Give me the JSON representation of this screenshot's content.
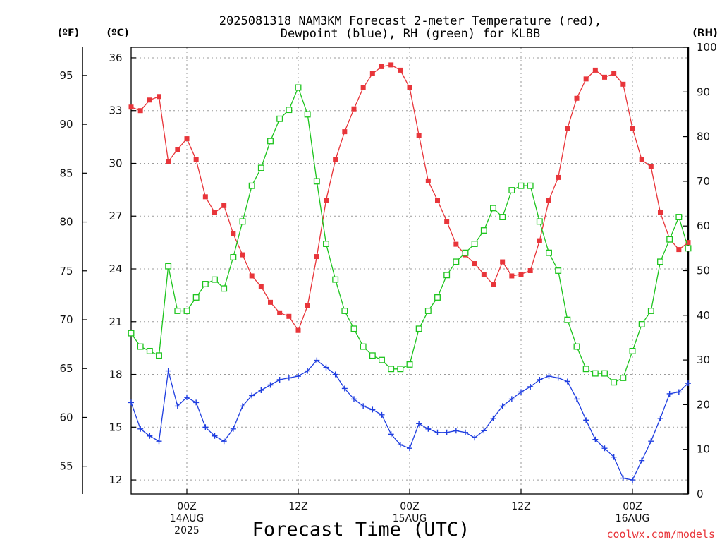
{
  "chart_data": {
    "type": "line",
    "title_lines": [
      "2025081318 NAM3KM Forecast 2-meter Temperature (red),",
      "Dewpoint (blue), RH (green) for KLBB"
    ],
    "units": {
      "fahrenheit": "(ºF)",
      "celsius": "(ºC)",
      "rh": "(RH)"
    },
    "xlabel": "Forecast Time (UTC)",
    "credit": "coolwx.com/models",
    "x_ticks": [
      {
        "t": 6,
        "lines": [
          "00Z",
          "14AUG",
          "2025"
        ]
      },
      {
        "t": 18,
        "lines": [
          "12Z"
        ]
      },
      {
        "t": 30,
        "lines": [
          "00Z",
          "15AUG"
        ]
      },
      {
        "t": 42,
        "lines": [
          "12Z"
        ]
      },
      {
        "t": 54,
        "lines": [
          "00Z",
          "16AUG"
        ]
      }
    ],
    "x_range_hours": [
      0,
      60
    ],
    "left_axis": {
      "unit": "C",
      "range": [
        11.2,
        36.6
      ],
      "ticks": [
        "12",
        "15",
        "18",
        "21",
        "24",
        "27",
        "30",
        "33",
        "36"
      ]
    },
    "far_left_axis": {
      "unit": "F",
      "range": [
        52.16,
        97.88
      ],
      "ticks": [
        "55",
        "60",
        "65",
        "70",
        "75",
        "80",
        "85",
        "90",
        "95"
      ]
    },
    "right_axis": {
      "unit": "RH %",
      "range": [
        0,
        100
      ],
      "ticks": [
        "0",
        "10",
        "20",
        "30",
        "40",
        "50",
        "60",
        "70",
        "80",
        "90",
        "100"
      ]
    },
    "grid": true,
    "series": [
      {
        "name": "Temperature (red)",
        "color": "#e8353a",
        "marker": "filled-square",
        "axis": "C",
        "x": [
          0,
          1,
          2,
          3,
          4,
          5,
          6,
          7,
          8,
          9,
          10,
          11,
          12,
          13,
          14,
          15,
          16,
          17,
          18,
          19,
          20,
          21,
          22,
          23,
          24,
          25,
          26,
          27,
          28,
          29,
          30,
          31,
          32,
          33,
          34,
          35,
          36,
          37,
          38,
          39,
          40,
          41,
          42,
          43,
          44,
          45,
          46,
          47,
          48,
          49,
          50,
          51,
          52,
          53,
          54,
          55,
          56,
          57,
          58,
          59,
          60
        ],
        "values": [
          33.2,
          33.0,
          33.6,
          33.8,
          30.1,
          30.8,
          31.4,
          30.2,
          28.1,
          27.2,
          27.6,
          26.0,
          24.8,
          23.6,
          23.0,
          22.1,
          21.5,
          21.3,
          20.5,
          21.9,
          24.7,
          27.9,
          30.2,
          31.8,
          33.1,
          34.3,
          35.1,
          35.5,
          35.6,
          35.3,
          34.3,
          31.6,
          29.0,
          27.9,
          26.7,
          25.4,
          24.8,
          24.3,
          23.7,
          23.1,
          24.4,
          23.6,
          23.7,
          23.9,
          25.6,
          27.9,
          29.2,
          32.0,
          33.7,
          34.8,
          35.3,
          34.9,
          35.1,
          34.5,
          32.0,
          30.2,
          29.8,
          27.2,
          25.7,
          25.1,
          25.5
        ]
      },
      {
        "name": "Dewpoint (blue)",
        "color": "#1f3ee0",
        "marker": "plus",
        "axis": "C",
        "x": [
          0,
          1,
          2,
          3,
          4,
          5,
          6,
          7,
          8,
          9,
          10,
          11,
          12,
          13,
          14,
          15,
          16,
          17,
          18,
          19,
          20,
          21,
          22,
          23,
          24,
          25,
          26,
          27,
          28,
          29,
          30,
          31,
          32,
          33,
          34,
          35,
          36,
          37,
          38,
          39,
          40,
          41,
          42,
          43,
          44,
          45,
          46,
          47,
          48,
          49,
          50,
          51,
          52,
          53,
          54,
          55,
          56,
          57,
          58,
          59,
          60
        ],
        "values": [
          16.4,
          14.9,
          14.5,
          14.2,
          18.2,
          16.2,
          16.7,
          16.4,
          15.0,
          14.5,
          14.2,
          14.9,
          16.2,
          16.8,
          17.1,
          17.4,
          17.7,
          17.8,
          17.9,
          18.2,
          18.8,
          18.4,
          18.0,
          17.2,
          16.6,
          16.2,
          16.0,
          15.7,
          14.6,
          14.0,
          13.8,
          15.2,
          14.9,
          14.7,
          14.7,
          14.8,
          14.7,
          14.4,
          14.8,
          15.5,
          16.2,
          16.6,
          17.0,
          17.3,
          17.7,
          17.9,
          17.8,
          17.6,
          16.6,
          15.4,
          14.3,
          13.8,
          13.3,
          12.1,
          12.0,
          13.1,
          14.2,
          15.5,
          16.9,
          17.0,
          17.5
        ]
      },
      {
        "name": "RH (green)",
        "color": "#1dc41d",
        "marker": "open-square",
        "axis": "RH",
        "x": [
          0,
          1,
          2,
          3,
          4,
          5,
          6,
          7,
          8,
          9,
          10,
          11,
          12,
          13,
          14,
          15,
          16,
          17,
          18,
          19,
          20,
          21,
          22,
          23,
          24,
          25,
          26,
          27,
          28,
          29,
          30,
          31,
          32,
          33,
          34,
          35,
          36,
          37,
          38,
          39,
          40,
          41,
          42,
          43,
          44,
          45,
          46,
          47,
          48,
          49,
          50,
          51,
          52,
          53,
          54,
          55,
          56,
          57,
          58,
          59,
          60
        ],
        "values": [
          36,
          33,
          32,
          31,
          51,
          41,
          41,
          44,
          47,
          48,
          46,
          53,
          61,
          69,
          73,
          79,
          84,
          86,
          91,
          85,
          70,
          56,
          48,
          41,
          37,
          33,
          31,
          30,
          28,
          28,
          29,
          37,
          41,
          44,
          49,
          52,
          54,
          56,
          59,
          64,
          62,
          68,
          69,
          69,
          61,
          54,
          50,
          39,
          33,
          28,
          27,
          27,
          25,
          26,
          32,
          38,
          41,
          52,
          57,
          62,
          55
        ]
      }
    ]
  }
}
